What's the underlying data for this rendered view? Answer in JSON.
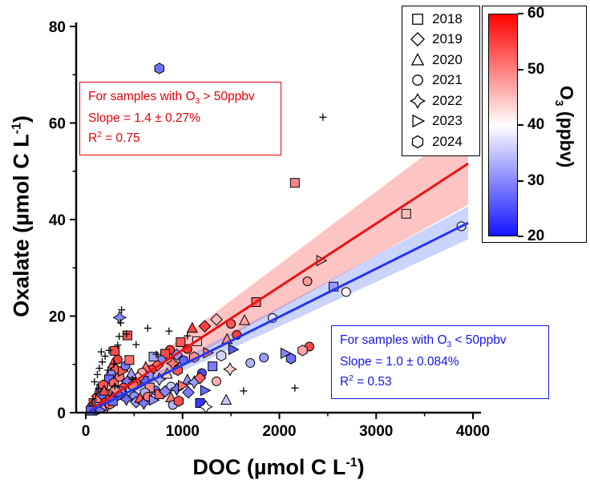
{
  "chart_data": {
    "type": "scatter",
    "title": "",
    "xlabel": {
      "main": "DOC (µmol C L",
      "sup": "-1",
      "close": ")"
    },
    "ylabel": {
      "main": "Oxalate (µmol C L",
      "sup": "-1",
      "close": ")"
    },
    "xlim": [
      0,
      4000
    ],
    "ylim": [
      0,
      80
    ],
    "x_ticks": [
      "0",
      "1000",
      "2000",
      "3000",
      "4000"
    ],
    "y_ticks": [
      "0",
      "20",
      "40",
      "60",
      "80"
    ],
    "x_minor_ticks": [
      500,
      1500,
      2500,
      3500
    ],
    "y_minor_ticks": [
      10,
      30,
      50,
      70
    ],
    "grid": false,
    "legend_position": "top-right-inside",
    "legend": [
      {
        "label": "2018",
        "marker": "square"
      },
      {
        "label": "2019",
        "marker": "diamond"
      },
      {
        "label": "2020",
        "marker": "triangle-up"
      },
      {
        "label": "2021",
        "marker": "circle"
      },
      {
        "label": "2022",
        "marker": "star4"
      },
      {
        "label": "2023",
        "marker": "triangle-right"
      },
      {
        "label": "2024",
        "marker": "hexagon"
      }
    ],
    "colorbar": {
      "label_main": "O",
      "label_sub": "3",
      "label_rest": " (ppbv)",
      "min": 20,
      "max": 60,
      "ticks": [
        "60",
        "50",
        "40",
        "30",
        "20"
      ],
      "top_color": "#ff0000",
      "mid_color": "#ffffff",
      "bottom_color": "#1414ff"
    },
    "annotations": {
      "red": {
        "pre": "For samples with O",
        "sub": "3",
        "post": " > 50ppbv",
        "slope": "Slope = 1.4 ± 0.27%",
        "r2_pre": "R",
        "r2_sup": "2",
        "r2_post": " = 0.75",
        "color": "#e8000b"
      },
      "blue": {
        "pre": "For samples with O",
        "sub": "3",
        "post": " < 50ppbv",
        "slope": "Slope = 1.0 ± 0.084%",
        "r2_pre": "R",
        "r2_sup": "2",
        "r2_post": " = 0.53",
        "color": "#1515ee"
      }
    },
    "fits": [
      {
        "id": "o3-above-50",
        "line_color": "#e81414",
        "band_color": "rgba(248,70,70,0.32)",
        "x1": 40,
        "y1": 0.4,
        "x2": 3950,
        "y2": 51.6,
        "band_w1": 0.8,
        "band_w2": 8.5
      },
      {
        "id": "o3-below-50",
        "line_color": "#2636f0",
        "band_color": "rgba(90,120,250,0.32)",
        "x1": 40,
        "y1": 0.3,
        "x2": 3950,
        "y2": 39.3,
        "band_w1": 0.6,
        "band_w2": 3.4
      }
    ],
    "points": [
      [
        760,
        71.3,
        "2024",
        27
      ],
      [
        2160,
        47.6,
        "2018",
        51
      ],
      [
        3310,
        41.2,
        "2018",
        46
      ],
      [
        3880,
        38.6,
        "2021",
        37
      ],
      [
        2430,
        31.5,
        "2023",
        47
      ],
      [
        2560,
        26.1,
        "2018",
        31
      ],
      [
        2290,
        27.2,
        "2021",
        49
      ],
      [
        2690,
        25.0,
        "2021",
        41
      ],
      [
        1930,
        19.6,
        "2021",
        37
      ],
      [
        2310,
        13.7,
        "2021",
        56
      ],
      [
        2240,
        12.9,
        "2024",
        48
      ],
      [
        2120,
        11.2,
        "2024",
        27
      ],
      [
        2060,
        12.3,
        "2023",
        29
      ],
      [
        1840,
        11.4,
        "2021",
        31
      ],
      [
        1760,
        22.9,
        "2018",
        53
      ],
      [
        1640,
        19.1,
        "2020",
        48
      ],
      [
        1560,
        16.1,
        "2021",
        57
      ],
      [
        1700,
        10.3,
        "2021",
        33
      ],
      [
        1520,
        13.1,
        "2023",
        25
      ],
      [
        1500,
        18.4,
        "2021",
        55
      ],
      [
        1460,
        15.2,
        "2020",
        50
      ],
      [
        1350,
        19.3,
        "2019",
        46
      ],
      [
        1230,
        17.9,
        "2019",
        57
      ],
      [
        1100,
        17.5,
        "2020",
        57
      ],
      [
        1150,
        14.8,
        "2018",
        44
      ],
      [
        1050,
        13.2,
        "2021",
        58
      ],
      [
        980,
        14.6,
        "2018",
        55
      ],
      [
        940,
        12.0,
        "2019",
        30
      ],
      [
        1010,
        10.8,
        "2021",
        26
      ],
      [
        1120,
        11.5,
        "2024",
        50
      ],
      [
        1260,
        12.4,
        "2023",
        52
      ],
      [
        1310,
        9.6,
        "2018",
        28
      ],
      [
        1400,
        11.8,
        "2024",
        36
      ],
      [
        1200,
        8.2,
        "2021",
        24
      ],
      [
        1490,
        9.0,
        "2022",
        44
      ],
      [
        1230,
        4.6,
        "2023",
        26
      ],
      [
        1180,
        2.0,
        "2018",
        22
      ],
      [
        1350,
        6.5,
        "2021",
        47
      ],
      [
        1050,
        6.8,
        "2020",
        30
      ],
      [
        950,
        8.8,
        "2024",
        55
      ],
      [
        870,
        13.0,
        "2021",
        57
      ],
      [
        820,
        12.2,
        "2018",
        56
      ],
      [
        780,
        10.9,
        "2021",
        29
      ],
      [
        740,
        9.8,
        "2019",
        54
      ],
      [
        700,
        11.6,
        "2018",
        32
      ],
      [
        680,
        8.9,
        "2021",
        57
      ],
      [
        650,
        7.7,
        "2024",
        30
      ],
      [
        620,
        9.4,
        "2020",
        53
      ],
      [
        600,
        6.6,
        "2018",
        26
      ],
      [
        580,
        8.3,
        "2021",
        48
      ],
      [
        560,
        5.8,
        "2023",
        29
      ],
      [
        540,
        7.2,
        "2019",
        45
      ],
      [
        520,
        6.2,
        "2021",
        56
      ],
      [
        760,
        6.9,
        "2022",
        33
      ],
      [
        840,
        8.0,
        "2020",
        44
      ],
      [
        880,
        5.4,
        "2021",
        35
      ],
      [
        900,
        10.2,
        "2022",
        52
      ],
      [
        720,
        4.6,
        "2021",
        27
      ],
      [
        660,
        5.2,
        "2018",
        50
      ],
      [
        610,
        4.1,
        "2024",
        33
      ],
      [
        350,
        19.7,
        "2022",
        29
      ],
      [
        430,
        16.0,
        "2018",
        55
      ],
      [
        300,
        12.8,
        "2018",
        56
      ],
      [
        330,
        11.0,
        "2021",
        57
      ],
      [
        280,
        10.1,
        "2020",
        54
      ],
      [
        310,
        8.9,
        "2019",
        55
      ],
      [
        260,
        8.0,
        "2021",
        30
      ],
      [
        240,
        6.9,
        "2018",
        26
      ],
      [
        290,
        6.1,
        "2024",
        54
      ],
      [
        350,
        7.4,
        "2021",
        52
      ],
      [
        380,
        8.6,
        "2023",
        55
      ],
      [
        410,
        9.7,
        "2021",
        28
      ],
      [
        450,
        10.9,
        "2018",
        53
      ],
      [
        470,
        8.1,
        "2020",
        31
      ],
      [
        430,
        6.4,
        "2019",
        28
      ],
      [
        390,
        5.2,
        "2021",
        56
      ],
      [
        360,
        4.4,
        "2018",
        30
      ],
      [
        330,
        3.6,
        "2024",
        26
      ],
      [
        300,
        4.8,
        "2022",
        50
      ],
      [
        270,
        3.2,
        "2021",
        24
      ],
      [
        240,
        2.6,
        "2020",
        55
      ],
      [
        210,
        3.9,
        "2019",
        52
      ],
      [
        460,
        4.3,
        "2023",
        34
      ],
      [
        490,
        5.6,
        "2024",
        52
      ],
      [
        500,
        3.4,
        "2021",
        30
      ],
      [
        420,
        2.8,
        "2022",
        27
      ],
      [
        60,
        1.2,
        "2021",
        30
      ],
      [
        80,
        2.0,
        "2018",
        55
      ],
      [
        100,
        2.8,
        "2020",
        28
      ],
      [
        120,
        3.4,
        "2019",
        56
      ],
      [
        140,
        4.2,
        "2021",
        53
      ],
      [
        160,
        5.0,
        "2018",
        29
      ],
      [
        180,
        5.7,
        "2024",
        55
      ],
      [
        90,
        1.0,
        "2022",
        26
      ],
      [
        110,
        1.8,
        "2023",
        54
      ],
      [
        130,
        2.4,
        "2021",
        31
      ],
      [
        150,
        3.0,
        "2018",
        52
      ],
      [
        170,
        3.7,
        "2019",
        27
      ],
      [
        190,
        4.5,
        "2020",
        56
      ],
      [
        70,
        0.6,
        "2024",
        29
      ],
      [
        50,
        0.4,
        "2018",
        26
      ],
      [
        200,
        2.1,
        "2021",
        57
      ],
      [
        220,
        1.4,
        "2022",
        30
      ],
      [
        180,
        0.9,
        "2020",
        50
      ],
      [
        150,
        0.5,
        "2023",
        28
      ],
      [
        250,
        1.8,
        "2024",
        53
      ],
      [
        280,
        2.4,
        "2018",
        27
      ],
      [
        520,
        2.2,
        "2019",
        31
      ],
      [
        560,
        3.0,
        "2020",
        55
      ],
      [
        600,
        2.0,
        "2022",
        28
      ],
      [
        640,
        3.3,
        "2021",
        52
      ],
      [
        700,
        2.6,
        "2023",
        30
      ],
      [
        760,
        3.8,
        "2018",
        54
      ],
      [
        820,
        4.4,
        "2019",
        29
      ],
      [
        880,
        3.1,
        "2020",
        52
      ],
      [
        940,
        4.9,
        "2022",
        27
      ],
      [
        1000,
        5.6,
        "2023",
        53
      ],
      [
        1060,
        4.2,
        "2019",
        28
      ],
      [
        900,
        1.6,
        "2021",
        33
      ],
      [
        960,
        2.4,
        "2024",
        56
      ],
      [
        1120,
        6.3,
        "2022",
        31
      ],
      [
        1180,
        7.2,
        "2019",
        54
      ],
      [
        1450,
        2.6,
        "2020",
        35
      ],
      [
        1240,
        1.2,
        "2022",
        40
      ]
    ],
    "plus_points": [
      [
        90,
        6.4
      ],
      [
        120,
        7.9
      ],
      [
        140,
        9.2
      ],
      [
        170,
        10.5
      ],
      [
        200,
        11.7
      ],
      [
        240,
        12.9
      ],
      [
        290,
        10.1
      ],
      [
        330,
        14.0
      ],
      [
        345,
        15.8
      ],
      [
        360,
        18.6
      ],
      [
        370,
        21.3
      ],
      [
        160,
        12.6
      ],
      [
        130,
        5.0
      ],
      [
        230,
        8.8
      ],
      [
        420,
        16.3
      ],
      [
        520,
        14.1
      ],
      [
        300,
        5.5
      ],
      [
        480,
        6.9
      ],
      [
        640,
        17.5
      ],
      [
        860,
        16.9
      ],
      [
        1050,
        15.9
      ],
      [
        730,
        12.1
      ],
      [
        2450,
        61.2
      ],
      [
        2160,
        5.1
      ],
      [
        1630,
        4.5
      ]
    ]
  }
}
